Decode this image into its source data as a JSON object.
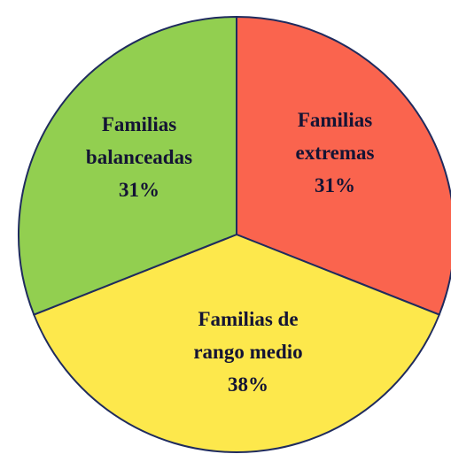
{
  "chart_data": {
    "type": "pie",
    "categories": [
      "Familias extremas",
      "Familias de rango medio",
      "Familias balanceadas"
    ],
    "values": [
      31,
      38,
      31
    ],
    "value_labels": [
      "31%",
      "38%",
      "31%"
    ],
    "colors": [
      "#fa644e",
      "#fde84c",
      "#92cf50"
    ]
  }
}
